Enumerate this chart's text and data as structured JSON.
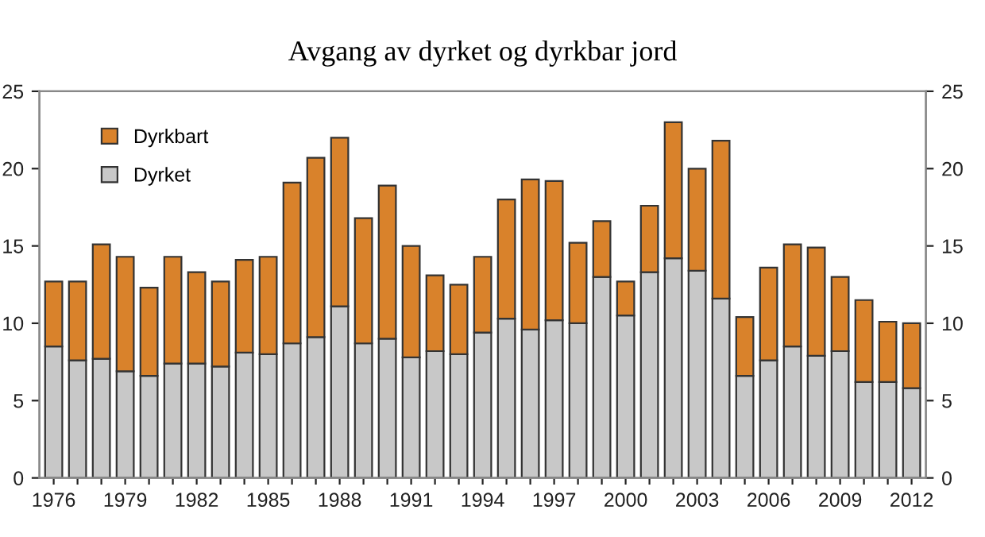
{
  "chart_data": {
    "type": "bar",
    "title": "Avgang av dyrket og dyrkbar jord",
    "stacked": true,
    "categories": [
      "1976",
      null,
      null,
      "1979",
      null,
      null,
      "1982",
      null,
      null,
      "1985",
      null,
      null,
      "1988",
      null,
      null,
      "1991",
      null,
      null,
      "1994",
      null,
      null,
      "1997",
      null,
      null,
      "2000",
      null,
      null,
      "2003",
      null,
      null,
      "2006",
      null,
      null,
      "2009",
      null,
      null,
      "2012"
    ],
    "series": [
      {
        "name": "Dyrket",
        "color": "#c8c8c8",
        "values": [
          8.5,
          7.6,
          7.7,
          6.9,
          6.6,
          7.4,
          7.4,
          7.2,
          8.1,
          8.0,
          8.7,
          9.1,
          11.1,
          8.7,
          9.0,
          7.8,
          8.2,
          8.0,
          9.4,
          10.3,
          9.6,
          10.2,
          10.0,
          13.0,
          10.5,
          13.3,
          14.2,
          13.4,
          11.6,
          6.6,
          7.6,
          8.5,
          7.9,
          8.2,
          6.2,
          6.2,
          5.8
        ]
      },
      {
        "name": "Dyrkbart",
        "color": "#d9822b",
        "values": [
          4.2,
          5.1,
          7.4,
          7.4,
          5.7,
          6.9,
          5.9,
          5.5,
          6.0,
          6.3,
          10.4,
          11.6,
          10.9,
          8.1,
          9.9,
          7.2,
          4.9,
          4.5,
          4.9,
          7.7,
          9.7,
          9.0,
          5.2,
          3.6,
          2.2,
          4.3,
          8.8,
          6.6,
          10.2,
          3.8,
          6.0,
          6.6,
          7.0,
          4.8,
          5.3,
          3.9,
          4.2
        ]
      }
    ],
    "ylim": [
      0,
      25
    ],
    "yticks": [
      0,
      5,
      10,
      15,
      20,
      25
    ],
    "y2lim": [
      0,
      25
    ],
    "y2ticks": [
      0,
      5,
      10,
      15,
      20,
      25
    ],
    "grid": false,
    "legend": "top left"
  }
}
